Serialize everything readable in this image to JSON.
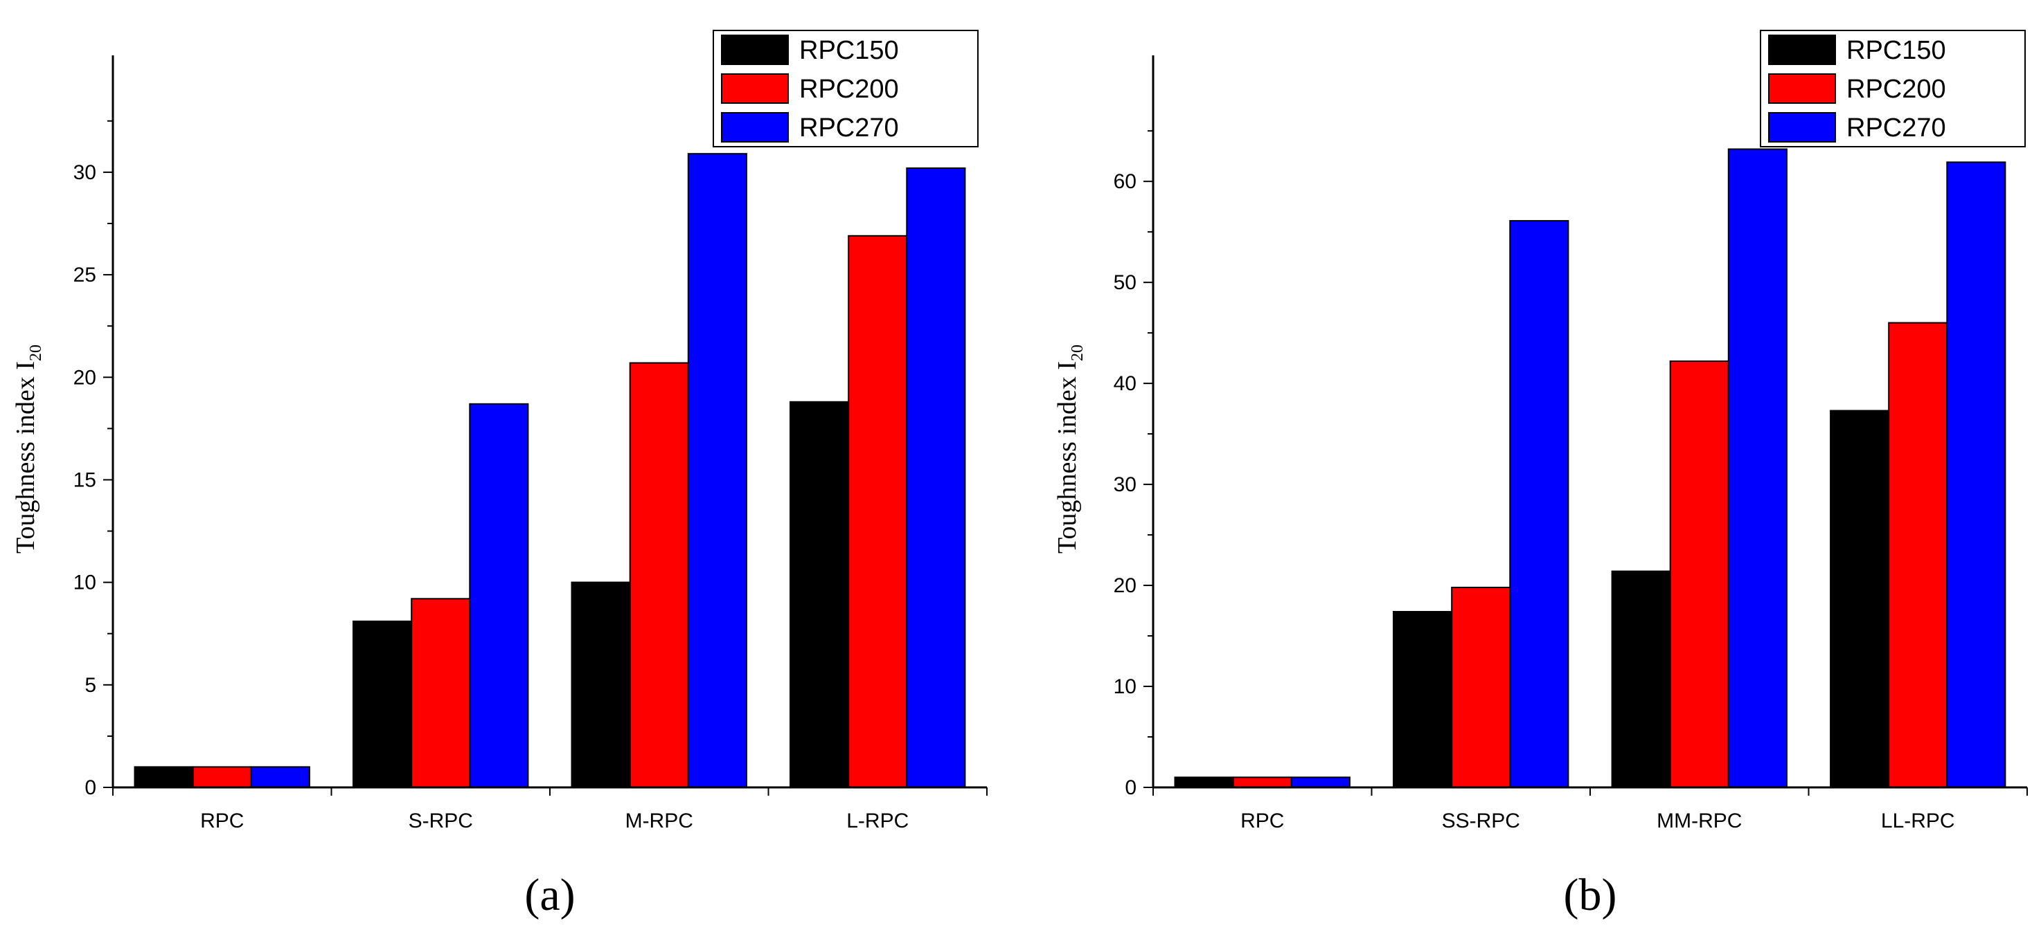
{
  "chart_data": [
    {
      "type": "bar",
      "panel_label": "(a)",
      "ylabel_main": "Toughness index I",
      "ylabel_sub": "20",
      "categories": [
        "RPC",
        "S-RPC",
        "M-RPC",
        "L-RPC"
      ],
      "ylim": [
        0,
        33
      ],
      "yticks": [
        0,
        5,
        10,
        15,
        20,
        25,
        30
      ],
      "legend_position": "top-right",
      "grid": false,
      "series": [
        {
          "name": "RPC150",
          "color": "#000000",
          "values": [
            1.0,
            8.1,
            10.0,
            18.8
          ]
        },
        {
          "name": "RPC200",
          "color": "#ff0000",
          "values": [
            1.0,
            9.2,
            20.7,
            26.9
          ]
        },
        {
          "name": "RPC270",
          "color": "#0000ff",
          "values": [
            1.0,
            18.7,
            30.9,
            30.2
          ]
        }
      ]
    },
    {
      "type": "bar",
      "panel_label": "(b)",
      "ylabel_main": "Toughness index I",
      "ylabel_sub": "20",
      "categories": [
        "RPC",
        "SS-RPC",
        "MM-RPC",
        "LL-RPC"
      ],
      "ylim": [
        0,
        67
      ],
      "yticks": [
        0,
        10,
        20,
        30,
        40,
        50,
        60
      ],
      "legend_position": "top-right",
      "grid": false,
      "series": [
        {
          "name": "RPC150",
          "color": "#000000",
          "values": [
            1.0,
            17.4,
            21.4,
            37.3
          ]
        },
        {
          "name": "RPC200",
          "color": "#ff0000",
          "values": [
            1.0,
            19.8,
            42.2,
            46.0
          ]
        },
        {
          "name": "RPC270",
          "color": "#0000ff",
          "values": [
            1.0,
            56.1,
            63.2,
            61.9
          ]
        }
      ]
    }
  ]
}
